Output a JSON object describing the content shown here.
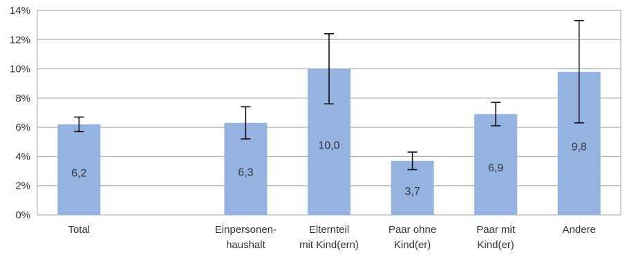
{
  "chart_data": {
    "type": "bar",
    "categories": [
      [
        "Total"
      ],
      [],
      [
        "Einpersonen-",
        "haushalt"
      ],
      [
        "Elternteil",
        "mit Kind(ern)"
      ],
      [
        "Paar ohne",
        "Kind(er)"
      ],
      [
        "Paar mit",
        "Kind(er)"
      ],
      [
        "Andere"
      ]
    ],
    "values": [
      6.2,
      null,
      6.3,
      10.0,
      3.7,
      6.9,
      9.8
    ],
    "value_labels": [
      "6,2",
      "",
      "6,3",
      "10,0",
      "3,7",
      "6,9",
      "9,8"
    ],
    "error_low": [
      5.7,
      null,
      5.2,
      7.6,
      3.1,
      6.1,
      6.3
    ],
    "error_high": [
      6.7,
      null,
      7.4,
      12.4,
      4.3,
      7.7,
      13.3
    ],
    "ylim": [
      0,
      14
    ],
    "yticks": [
      0,
      2,
      4,
      6,
      8,
      10,
      12,
      14
    ],
    "ytick_labels": [
      "0%",
      "2%",
      "4%",
      "6%",
      "8%",
      "10%",
      "12%",
      "14%"
    ],
    "grid": true,
    "bar_color": "#95b3e0",
    "grid_color": "#a6a6a6",
    "error_bar_color": "#000000"
  }
}
